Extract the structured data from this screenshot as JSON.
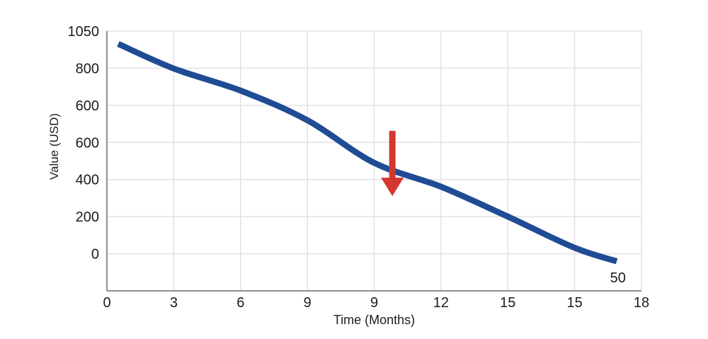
{
  "chart_data": {
    "type": "line",
    "title": "",
    "xlabel": "Time (Months)",
    "ylabel": "Value (USD)",
    "x_tick_labels": [
      "0",
      "3",
      "6",
      "9",
      "9",
      "12",
      "15",
      "15",
      "18"
    ],
    "y_tick_labels": [
      "1050",
      "800",
      "600",
      "600",
      "400",
      "200",
      "0"
    ],
    "grid": true,
    "legend": false,
    "series": [
      {
        "name": "Value (USD)",
        "color": "#1f4c94",
        "points": [
          {
            "month": 0.5,
            "value": 950,
            "pos": 0.17,
            "fy": 0.049
          },
          {
            "month": 3,
            "value": 800,
            "pos": 1,
            "fy": 0.144
          },
          {
            "month": 6,
            "value": 690,
            "pos": 2,
            "fy": 0.229
          },
          {
            "month": 9,
            "value": 550,
            "pos": 3,
            "fy": 0.343
          },
          {
            "month": 10.5,
            "value": 500,
            "pos": 4,
            "fy": 0.507
          },
          {
            "month": 12,
            "value": 370,
            "pos": 5,
            "fy": 0.599
          },
          {
            "month": 15,
            "value": 210,
            "pos": 6,
            "fy": 0.714
          },
          {
            "month": 16.5,
            "value": 40,
            "pos": 7,
            "fy": 0.834
          },
          {
            "month": 17,
            "value": 50,
            "pos": 7.63,
            "fy": 0.886
          }
        ]
      }
    ],
    "annotation": {
      "text": "50",
      "fx": 0.956,
      "fy": 0.948
    },
    "arrow": {
      "direction": "down",
      "color": "#d33830",
      "fx": 0.534,
      "fy_top": 0.384,
      "fy_tip": 0.635
    }
  },
  "colors": {
    "line": "#1f4c94",
    "arrow": "#d33830",
    "gridline": "#e2e2e2",
    "axis_line": "#8f8f8f",
    "text": "#1c1c1c",
    "background": "#ffffff"
  }
}
